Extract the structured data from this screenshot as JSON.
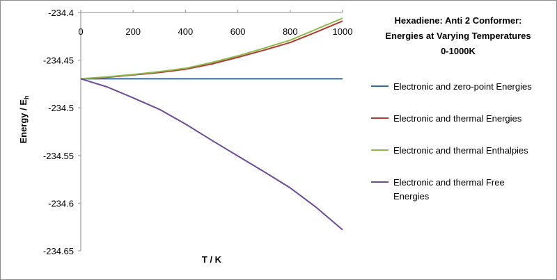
{
  "chart_data": {
    "type": "line",
    "title_lines": [
      "Hexadiene: Anti 2 Conformer:",
      "Energies at Varying Temperatures",
      "0-1000K"
    ],
    "xlabel": "T / K",
    "ylabel": "Energy / E",
    "ylabel_sub": "h",
    "xlim": [
      0,
      1000
    ],
    "ylim": [
      -234.65,
      -234.4
    ],
    "x_ticks": [
      "0",
      "200",
      "400",
      "600",
      "800",
      "1000"
    ],
    "y_ticks": [
      "-234.4",
      "-234.45",
      "-234.5",
      "-234.55",
      "-234.6",
      "-234.65"
    ],
    "x": [
      0,
      100,
      200,
      300,
      400,
      500,
      600,
      700,
      800,
      900,
      1000
    ],
    "legend_position": "right",
    "series": [
      {
        "name": "Electronic and zero-point Energies",
        "color": "#2e6ea6",
        "legend_lines": [
          "Electronic and zero-point Energies"
        ],
        "values": [
          -234.4695,
          -234.4695,
          -234.4695,
          -234.4695,
          -234.4695,
          -234.4695,
          -234.4695,
          -234.4695,
          -234.4695,
          -234.4695,
          -234.4695
        ]
      },
      {
        "name": "Electronic and thermal Energies",
        "color": "#b23a33",
        "legend_lines": [
          "Electronic and thermal Energies"
        ],
        "values": [
          -234.4695,
          -234.468,
          -234.4655,
          -234.463,
          -234.4595,
          -234.454,
          -234.447,
          -234.4395,
          -234.4315,
          -234.4205,
          -234.409
        ]
      },
      {
        "name": "Electronic and thermal Enthalpies",
        "color": "#8cba4a",
        "legend_lines": [
          "Electronic and thermal Enthalpies"
        ],
        "values": [
          -234.4695,
          -234.4675,
          -234.465,
          -234.462,
          -234.4585,
          -234.4525,
          -234.4455,
          -234.4375,
          -234.429,
          -234.4175,
          -234.406
        ]
      },
      {
        "name": "Electronic and thermal Free Energies",
        "color": "#6e4a98",
        "legend_lines": [
          "Electronic and thermal Free",
          "Energies"
        ],
        "values": [
          -234.4695,
          -234.478,
          -234.4895,
          -234.5015,
          -234.517,
          -234.534,
          -234.5505,
          -234.567,
          -234.584,
          -234.6045,
          -234.628
        ]
      }
    ]
  }
}
